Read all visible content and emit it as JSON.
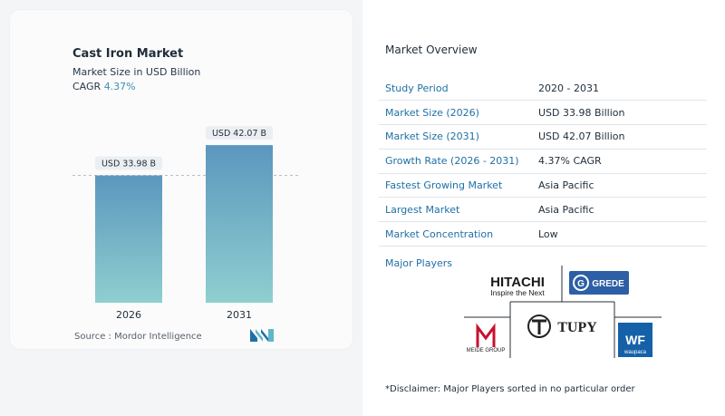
{
  "header": {
    "title": "Cast Iron Market",
    "subtitle": "Market Size in USD Billion",
    "cagr_label": "CAGR",
    "cagr_value": "4.37%"
  },
  "chart_data": {
    "type": "bar",
    "categories": [
      "2026",
      "2031"
    ],
    "values": [
      33.98,
      42.07
    ],
    "value_labels": [
      "USD 33.98 B",
      "USD 42.07 B"
    ],
    "title": "Cast Iron Market",
    "ylabel": "Market Size in USD Billion",
    "ylim": [
      0,
      45
    ],
    "colors": {
      "bar_top": "#5b97be",
      "bar_bottom": "#8fcfcf"
    },
    "reference_line": 33.98
  },
  "source": "Source :  Mordor Intelligence",
  "overview": {
    "title": "Market Overview",
    "rows": [
      {
        "key": "Study Period",
        "value": "2020 - 2031"
      },
      {
        "key": "Market Size (2026)",
        "value": "USD 33.98 Billion"
      },
      {
        "key": "Market Size (2031)",
        "value": "USD 42.07 Billion"
      },
      {
        "key": "Growth Rate (2026 - 2031)",
        "value": "4.37% CAGR"
      },
      {
        "key": "Fastest Growing Market",
        "value": "Asia Pacific"
      },
      {
        "key": "Largest Market",
        "value": "Asia Pacific"
      },
      {
        "key": "Market Concentration",
        "value": "Low"
      }
    ]
  },
  "major_players": {
    "title": "Major Players",
    "logos": [
      {
        "name": "hitachi-logo",
        "text": "HITACHI",
        "tagline": "Inspire the Next"
      },
      {
        "name": "grede-logo",
        "text": "GREDE"
      },
      {
        "name": "meide-logo",
        "text": "MEIDE GROUP"
      },
      {
        "name": "tupy-logo",
        "text": "TUPY"
      },
      {
        "name": "waupaca-logo",
        "text": "waupaca"
      }
    ]
  },
  "disclaimer": "*Disclaimer: Major Players sorted in no particular order",
  "accent_colors": {
    "link": "#1f6fa5",
    "cagr": "#3f8fb0"
  }
}
